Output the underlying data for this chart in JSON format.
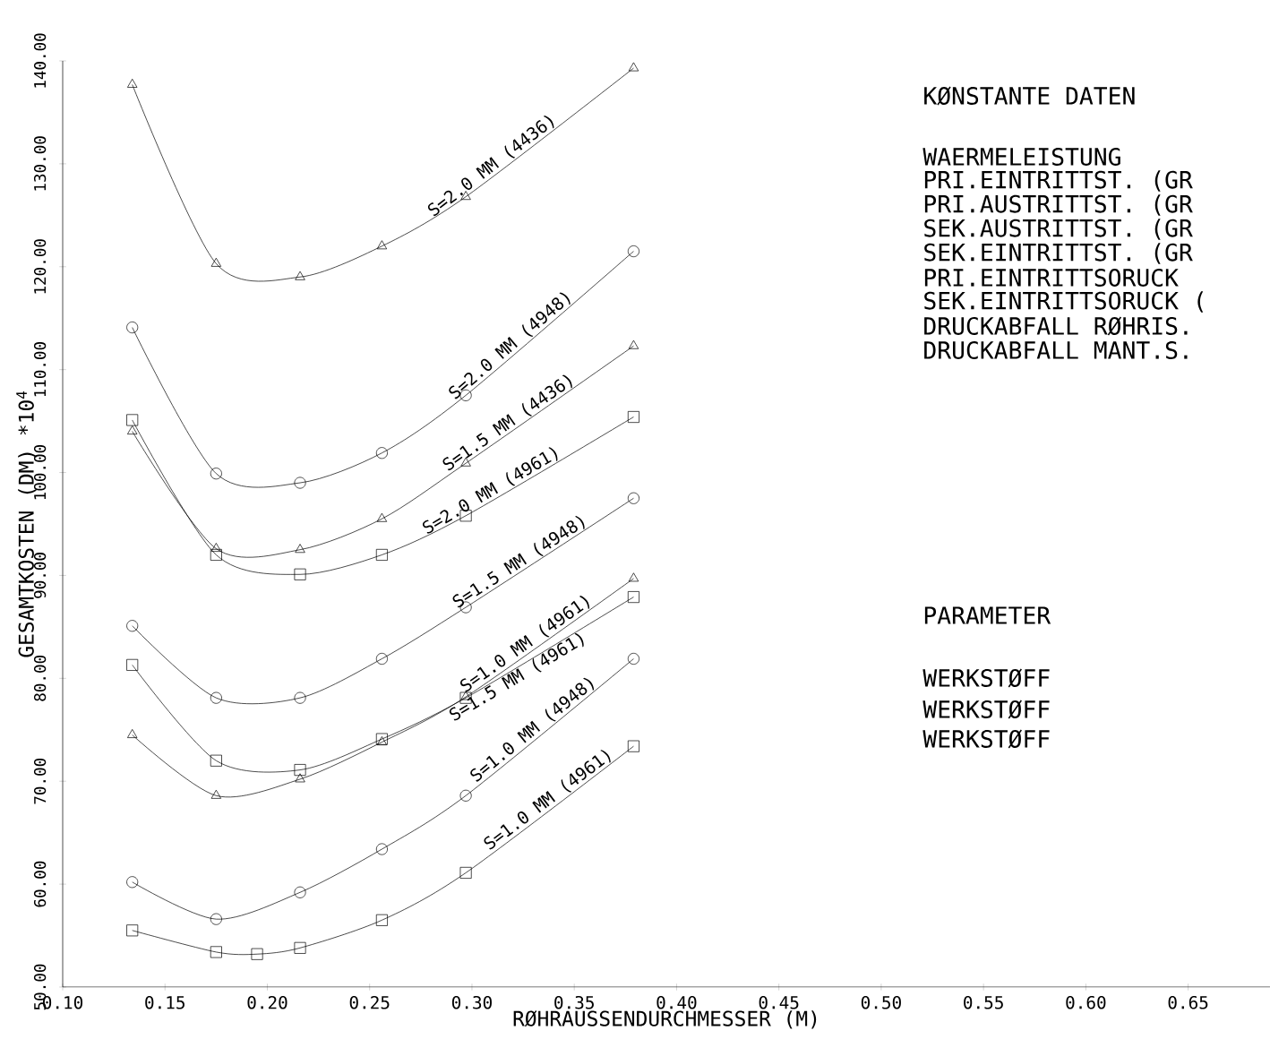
{
  "chart_data": {
    "type": "line",
    "xlabel": "RØHRAUSSENDURCHMESSER (M)",
    "ylabel": "GESAMTKOSTEN (DM) *10$^{4}$",
    "xlim": [
      0.1,
      0.69
    ],
    "ylim": [
      50,
      140
    ],
    "xticks": [
      {
        "value": 0.1,
        "label": "0.10"
      },
      {
        "value": 0.15,
        "label": "0.15"
      },
      {
        "value": 0.2,
        "label": "0.20"
      },
      {
        "value": 0.25,
        "label": "0.25"
      },
      {
        "value": 0.3,
        "label": "0.30"
      },
      {
        "value": 0.35,
        "label": "0.35"
      },
      {
        "value": 0.4,
        "label": "0.40"
      },
      {
        "value": 0.45,
        "label": "0.45"
      },
      {
        "value": 0.5,
        "label": "0.50"
      },
      {
        "value": 0.55,
        "label": "0.55"
      },
      {
        "value": 0.6,
        "label": "0.60"
      },
      {
        "value": 0.65,
        "label": "0.65"
      }
    ],
    "yticks": [
      {
        "value": 50,
        "label": "50.00"
      },
      {
        "value": 60,
        "label": "60.00"
      },
      {
        "value": 70,
        "label": "70.00"
      },
      {
        "value": 80,
        "label": "80.00"
      },
      {
        "value": 90,
        "label": "90.00"
      },
      {
        "value": 100,
        "label": "100.00"
      },
      {
        "value": 110,
        "label": "110.00"
      },
      {
        "value": 120,
        "label": "120.00"
      },
      {
        "value": 130,
        "label": "130.00"
      },
      {
        "value": 140,
        "label": "140.00"
      }
    ],
    "x": [
      0.134,
      0.175,
      0.216,
      0.256,
      0.297,
      0.379
    ],
    "line_style": "solid",
    "series": [
      {
        "name": "S=2.0 MM (4436)",
        "color": "#000000",
        "marker": "triangle",
        "values": [
          137.7,
          120.3,
          119.0,
          122.0,
          126.8,
          139.3
        ]
      },
      {
        "name": "S=2.0 MM (4948)",
        "color": "#000000",
        "marker": "circle",
        "values": [
          114.1,
          99.9,
          99.0,
          101.9,
          107.5,
          121.5
        ]
      },
      {
        "name": "S=1.5 MM (4436)",
        "color": "#000000",
        "marker": "triangle",
        "values": [
          104.0,
          92.6,
          92.5,
          95.5,
          100.9,
          112.3
        ]
      },
      {
        "name": "S=2.0 MM (4961)",
        "color": "#000000",
        "marker": "square",
        "values": [
          105.1,
          92.0,
          90.1,
          92.0,
          95.8,
          105.4
        ]
      },
      {
        "name": "S=1.5 MM (4948)",
        "color": "#000000",
        "marker": "circle",
        "values": [
          85.1,
          78.1,
          78.1,
          81.9,
          86.9,
          97.5
        ]
      },
      {
        "name": "S=1.0 MM (4961)",
        "color": "#000000",
        "marker": "triangle",
        "values": [
          74.5,
          68.6,
          70.2,
          73.8,
          78.2,
          89.7
        ]
      },
      {
        "name": "S=1.5 MM (4961)",
        "color": "#000000",
        "marker": "square",
        "values": [
          81.3,
          72.0,
          71.1,
          74.1,
          78.1,
          87.9
        ]
      },
      {
        "name": "S=1.0 MM (4948)",
        "color": "#000000",
        "marker": "circle",
        "values": [
          60.2,
          56.6,
          59.2,
          63.4,
          68.6,
          81.9
        ]
      },
      {
        "name": "S=1.0 MM (4961)",
        "color": "#000000",
        "marker": "square",
        "x": [
          0.134,
          0.175,
          0.195,
          0.216,
          0.256,
          0.297,
          0.379
        ],
        "values": [
          55.5,
          53.4,
          53.2,
          53.8,
          56.5,
          61.1,
          73.4
        ]
      }
    ],
    "annotations": [
      "KØNSTANTE DATEN",
      "WAERMELEISTUNG",
      "PRI.EINTRITTST.  (GR",
      "PRI.AUSTRITTST.  (GR",
      "SEK.AUSTRITTST.  (GR",
      "SEK.EINTRITTST.  (GR",
      "PRI.EINTRITTSORUCK",
      "SEK.EINTRITTSORUCK (",
      "DRUCKABFALL RØHRIS.",
      "DRUCKABFALL MANT.S.",
      "PARAMETER",
      "WERKSTØFF",
      "WERKSTØFF",
      "WERKSTØFF"
    ]
  }
}
